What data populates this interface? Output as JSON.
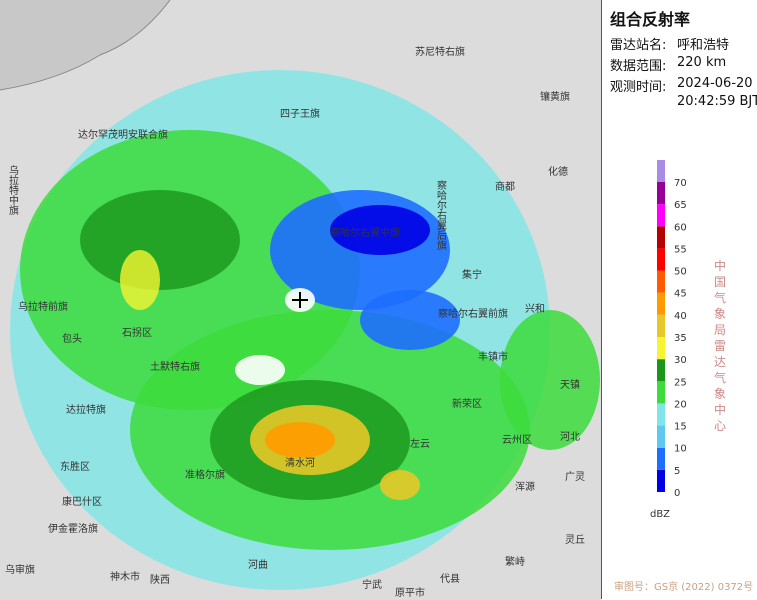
{
  "title": "组合反射率",
  "station": {
    "label": "雷达站名:",
    "value": "呼和浩特"
  },
  "range": {
    "label": "数据范围:",
    "value": "220 km"
  },
  "time": {
    "label": "观测时间:",
    "date": "2024-06-20",
    "clock": "20:42:59 BJT"
  },
  "legend": {
    "unit": "dBZ",
    "levels": [
      {
        "value": 0,
        "color": "#0000e6"
      },
      {
        "value": 5,
        "color": "#1e6eff"
      },
      {
        "value": 10,
        "color": "#5fc8f0"
      },
      {
        "value": 15,
        "color": "#7ee6e6"
      },
      {
        "value": 20,
        "color": "#3cdc3c"
      },
      {
        "value": 25,
        "color": "#1a961a"
      },
      {
        "value": 30,
        "color": "#f5f532"
      },
      {
        "value": 35,
        "color": "#e6c828"
      },
      {
        "value": 40,
        "color": "#ff9b00"
      },
      {
        "value": 45,
        "color": "#ff5a00"
      },
      {
        "value": 50,
        "color": "#ff0000"
      },
      {
        "value": 55,
        "color": "#b40000"
      },
      {
        "value": 60,
        "color": "#ff00ff"
      },
      {
        "value": 65,
        "color": "#960096"
      },
      {
        "value": 70,
        "color": "#aa8ce6"
      }
    ]
  },
  "agency": "中国气象局雷达气象中心",
  "credit": "审图号：GS京 (2022) 0372号",
  "places": [
    "苏尼特右旗",
    "镶黄旗",
    "达尔罕茂明安联合旗",
    "四子王旗",
    "察哈尔右翼后旗",
    "商都",
    "化德",
    "乌拉特中旗",
    "察哈尔右翼中旗",
    "集宁",
    "兴和",
    "乌拉特前旗",
    "包头",
    "石拐区",
    "土默特右旗",
    "察哈尔右翼前旗",
    "丰镇市",
    "新荣区",
    "云州区",
    "天镇",
    "达拉特旗",
    "东胜区",
    "康巴什区",
    "伊金霍洛旗",
    "准格尔旗",
    "清水河",
    "左云",
    "浑源",
    "广灵",
    "河北",
    "乌审旗",
    "神木市",
    "陕西",
    "河曲",
    "宁武",
    "原平市",
    "代县",
    "繁峙",
    "灵丘"
  ]
}
